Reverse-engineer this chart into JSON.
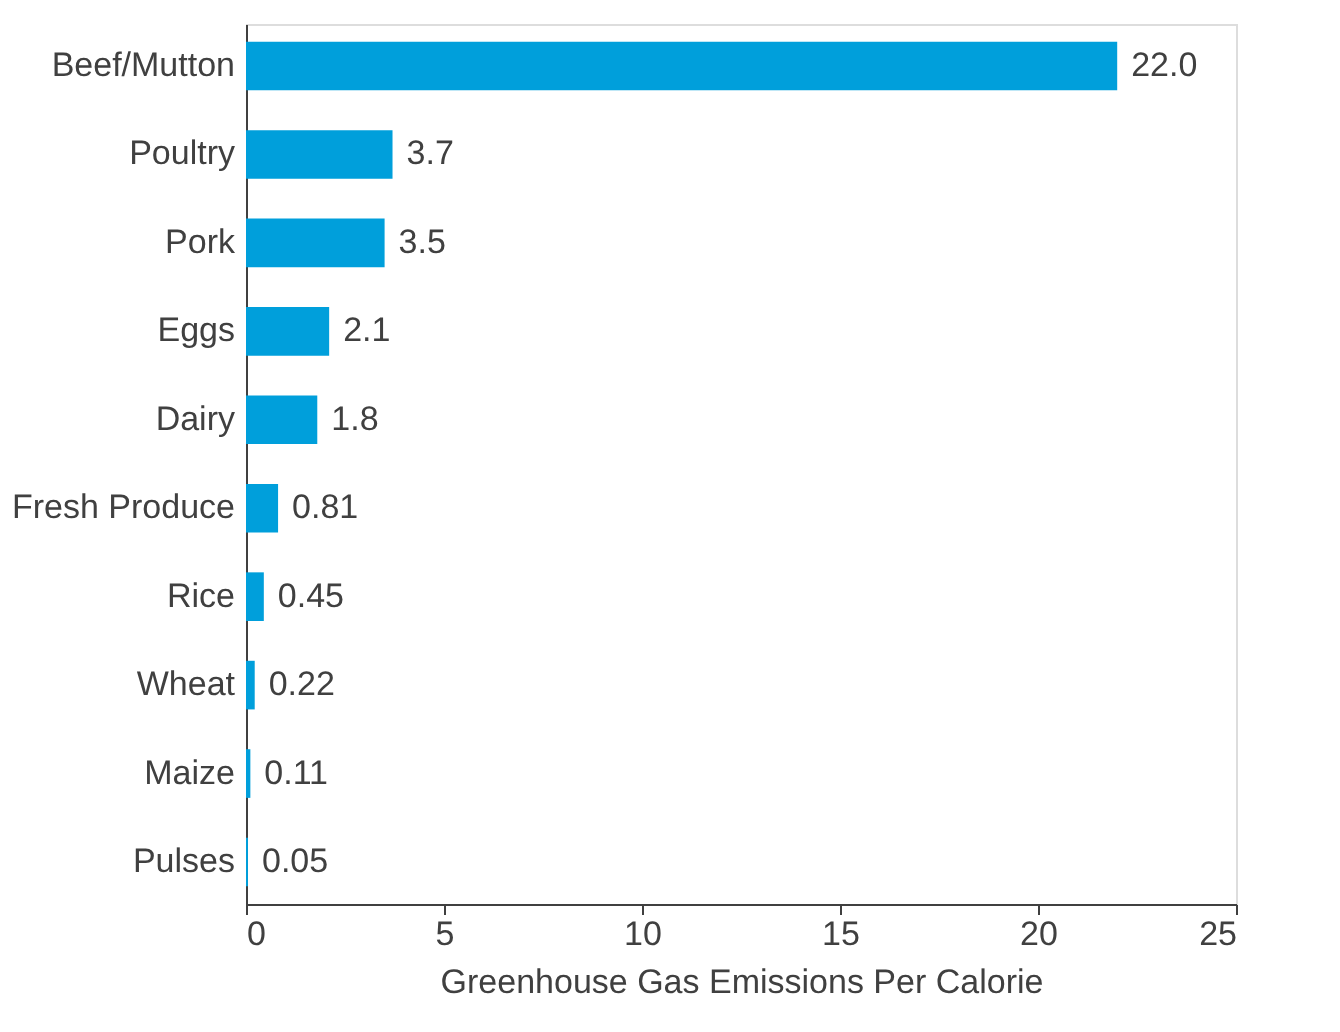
{
  "chart_data": {
    "type": "bar",
    "orientation": "horizontal",
    "xlabel": "Greenhouse Gas Emissions Per Calorie",
    "categories": [
      "Beef/Mutton",
      "Poultry",
      "Pork",
      "Eggs",
      "Dairy",
      "Fresh Produce",
      "Rice",
      "Wheat",
      "Maize",
      "Pulses"
    ],
    "values": [
      22.0,
      3.7,
      3.5,
      2.1,
      1.8,
      0.81,
      0.45,
      0.22,
      0.11,
      0.05
    ],
    "value_labels": [
      "22.0",
      "3.7",
      "3.5",
      "2.1",
      "1.8",
      "0.81",
      "0.45",
      "0.22",
      "0.11",
      "0.05"
    ],
    "color": "#009fdb",
    "xlim": [
      0,
      25
    ],
    "xticks": [
      0,
      5,
      10,
      15,
      20,
      25
    ],
    "grid": false
  }
}
